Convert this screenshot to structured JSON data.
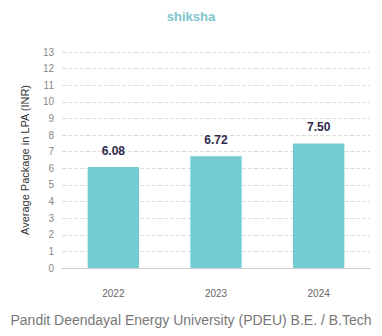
{
  "chart_data": {
    "type": "bar",
    "title": "Pandit Deendayal Energy University (PDEU) B.E. / B.Tech",
    "annotations": [
      "shiksha"
    ],
    "y_label": "Average Package in LPA (INR)",
    "categories": [
      "2022",
      "2023",
      "2024"
    ],
    "values": [
      6.08,
      6.72,
      7.5
    ],
    "value_labels": [
      "6.08",
      "6.72",
      "7.50"
    ],
    "color": "#75cbd2",
    "ylim": [
      0,
      13
    ],
    "yticks": [
      0,
      1,
      2,
      3,
      4,
      5,
      6,
      7,
      8,
      9,
      10,
      11,
      12,
      13
    ],
    "grid": true,
    "data_labels": true
  }
}
